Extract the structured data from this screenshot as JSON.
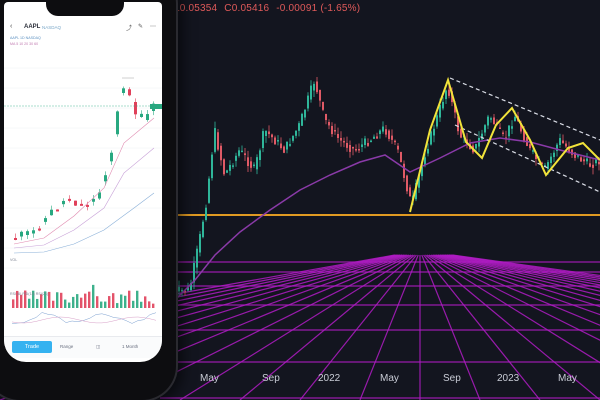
{
  "background_chart": {
    "ohlc_readout": [
      "L0.05354",
      "C0.05416",
      "-0.00091 (-1.65%)"
    ],
    "x_labels": [
      "May",
      "Sep",
      "2022",
      "May",
      "Sep",
      "2023",
      "May"
    ],
    "colors": {
      "bg": "#13151f",
      "up": "#2fb69a",
      "down": "#e05a66",
      "ma": "#8a3aa8",
      "support": "#e09a22",
      "pattern": "#f2e33a",
      "grid": "#b01cc4"
    }
  },
  "phone": {
    "header": {
      "ticker": "AAPL",
      "subtitle": "NASDAQ",
      "back_icon": "chevron-left-icon",
      "icons": [
        "share-icon",
        "edit-icon",
        "more-icon"
      ]
    },
    "info_lines": [
      "AAPL 1D NASDAQ",
      "MA 5 10 20 30 60"
    ],
    "volume_label": "VOL",
    "rsi_label": "RSI (6) RSI(12) RSI(24)",
    "bottom_bar": {
      "trade_label": "Trade",
      "range_label": "Range",
      "interval_label": "1 Month"
    },
    "colors": {
      "up": "#28a880",
      "down": "#e0405a",
      "accent": "#35b2f0"
    }
  }
}
